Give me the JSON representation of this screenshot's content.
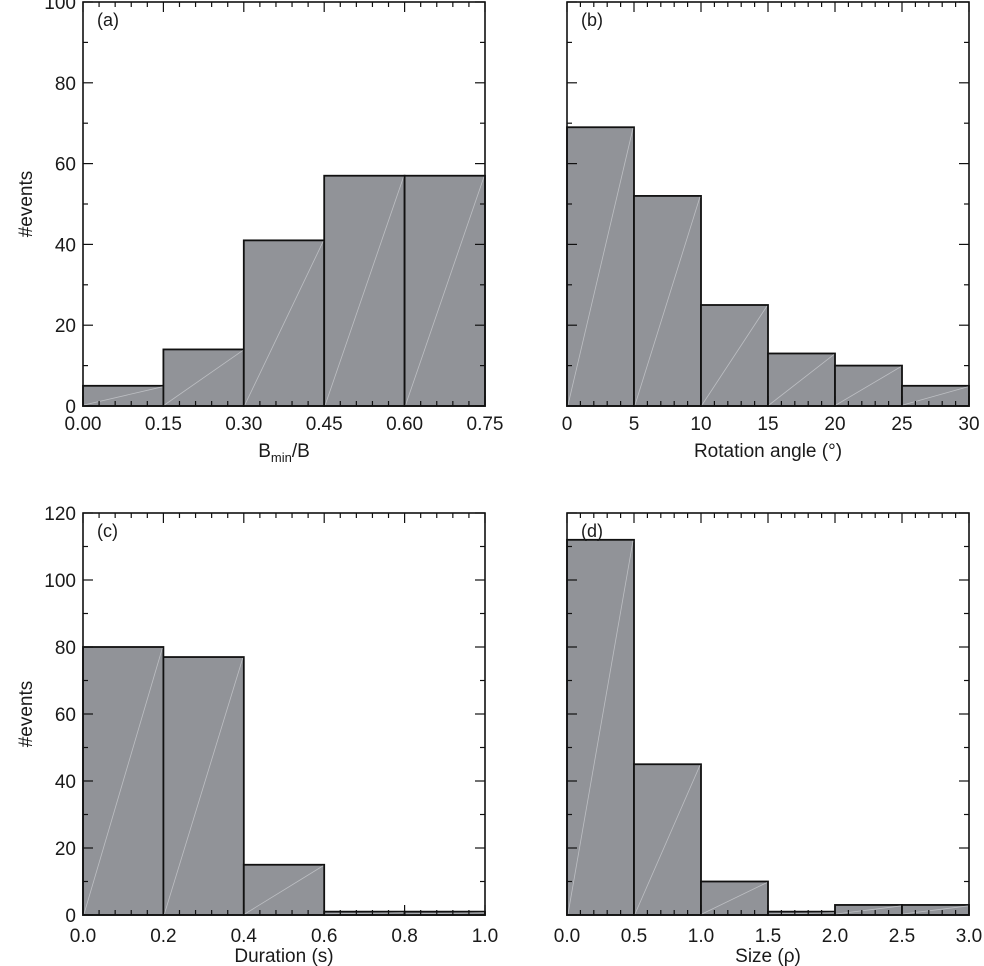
{
  "chart_data": [
    {
      "panel": "(a)",
      "type": "bar",
      "xlabel_base": "B",
      "xlabel_sub": "min",
      "xlabel_tail": "/B",
      "ylabel": "#events",
      "bin_edges": [
        0.0,
        0.15,
        0.3,
        0.45,
        0.6,
        0.75
      ],
      "values": [
        5,
        14,
        41,
        57,
        57
      ],
      "xticks": [
        "0.00",
        "0.15",
        "0.30",
        "0.45",
        "0.60",
        "0.75"
      ],
      "yticks": [
        "0",
        "20",
        "40",
        "60",
        "80",
        "100"
      ],
      "xlim": [
        0,
        0.75
      ],
      "ylim": [
        0,
        100
      ]
    },
    {
      "panel": "(b)",
      "type": "bar",
      "xlabel": "Rotation angle (°)",
      "bin_edges": [
        0,
        5,
        10,
        15,
        20,
        25,
        30
      ],
      "values": [
        69,
        52,
        25,
        13,
        10,
        5
      ],
      "xticks": [
        "0",
        "5",
        "10",
        "15",
        "20",
        "25",
        "30"
      ],
      "xlim": [
        0,
        30
      ],
      "ylim": [
        0,
        100
      ]
    },
    {
      "panel": "(c)",
      "type": "bar",
      "xlabel": "Duration (s)",
      "ylabel": "#events",
      "bin_edges": [
        0.0,
        0.2,
        0.4,
        0.6,
        0.8,
        1.0
      ],
      "values": [
        80,
        77,
        15,
        1,
        1
      ],
      "xticks": [
        "0.0",
        "0.2",
        "0.4",
        "0.6",
        "0.8",
        "1.0"
      ],
      "yticks": [
        "0",
        "20",
        "40",
        "60",
        "80",
        "100",
        "120"
      ],
      "xlim": [
        0,
        1.0
      ],
      "ylim": [
        0,
        120
      ]
    },
    {
      "panel": "(d)",
      "type": "bar",
      "xlabel": "Size (ρ)",
      "bin_edges": [
        0.0,
        0.5,
        1.0,
        1.5,
        2.0,
        2.5,
        3.0
      ],
      "values": [
        112,
        45,
        10,
        1,
        3,
        3
      ],
      "xticks": [
        "0.0",
        "0.5",
        "1.0",
        "1.5",
        "2.0",
        "2.5",
        "3.0"
      ],
      "xlim": [
        0,
        3.0
      ],
      "ylim": [
        0,
        120
      ]
    }
  ]
}
